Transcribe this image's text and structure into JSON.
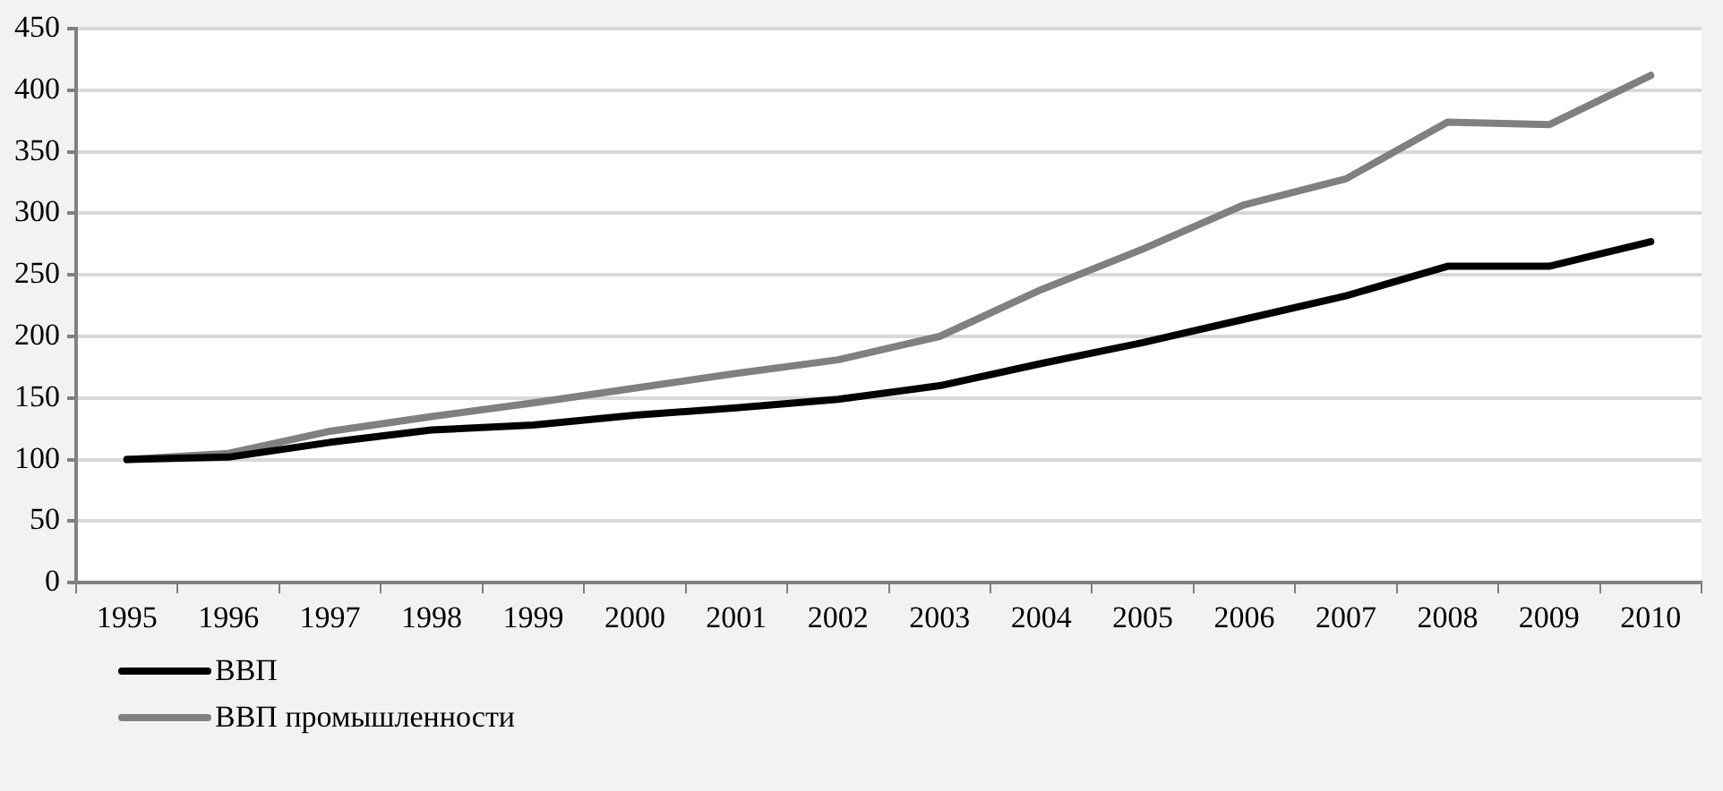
{
  "chart_data": {
    "type": "line",
    "categories": [
      "1995",
      "1996",
      "1997",
      "1998",
      "1999",
      "2000",
      "2001",
      "2002",
      "2003",
      "2004",
      "2005",
      "2006",
      "2007",
      "2008",
      "2009",
      "2010"
    ],
    "series": [
      {
        "name": "ВВП",
        "color": "#000000",
        "values": [
          100,
          102,
          114,
          124,
          128,
          136,
          142,
          149,
          160,
          178,
          195,
          214,
          233,
          257,
          257,
          277
        ]
      },
      {
        "name": "ВВП промышленности",
        "color": "#808080",
        "values": [
          100,
          105,
          123,
          135,
          146,
          158,
          170,
          181,
          200,
          238,
          271,
          307,
          328,
          374,
          372,
          412
        ]
      }
    ],
    "ylim": [
      0,
      450
    ],
    "yticks": [
      0,
      50,
      100,
      150,
      200,
      250,
      300,
      350,
      400,
      450
    ],
    "grid": "y",
    "legend": "bottom left",
    "marker": "none",
    "line_style": "solid"
  }
}
